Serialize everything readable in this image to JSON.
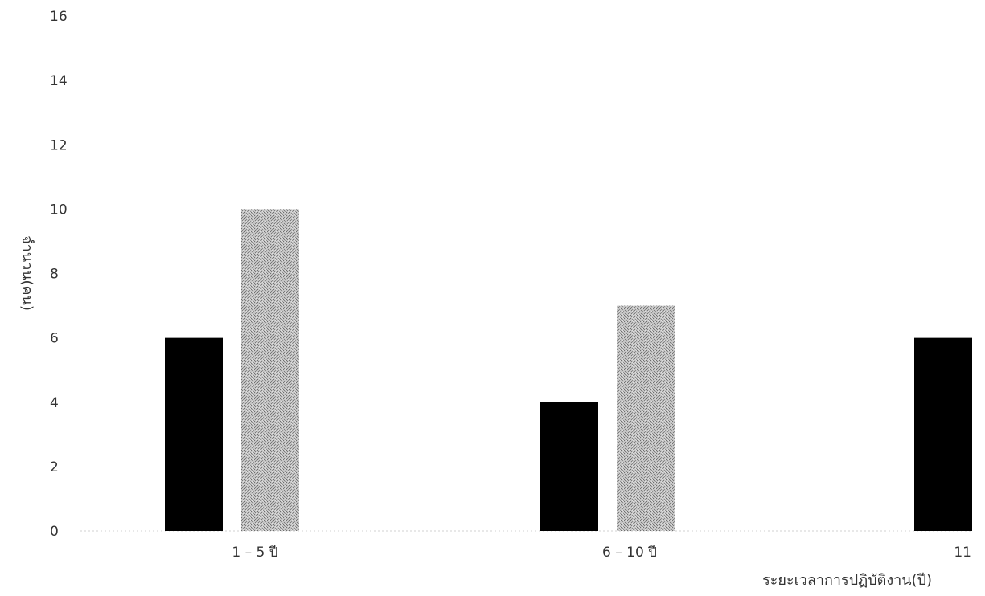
{
  "chart_data": {
    "type": "bar",
    "title": "",
    "xlabel": "ระยะเวลาการปฏิบัติงาน(ปี)",
    "ylabel": "จำนวน(คน)",
    "ylim": [
      0,
      16
    ],
    "yticks": [
      "0",
      "2",
      "4",
      "6",
      "8",
      "10",
      "12",
      "14",
      "16"
    ],
    "categories": [
      "1 – 5 ปี",
      "6 – 10 ปี",
      "11"
    ],
    "series": [
      {
        "values": [
          6,
          4,
          6
        ],
        "color": "#000000",
        "pattern": "solid"
      },
      {
        "values": [
          10,
          7,
          null
        ],
        "color": "#b3b3b3",
        "pattern": "stipple"
      }
    ],
    "grid": false,
    "legend": "none"
  }
}
